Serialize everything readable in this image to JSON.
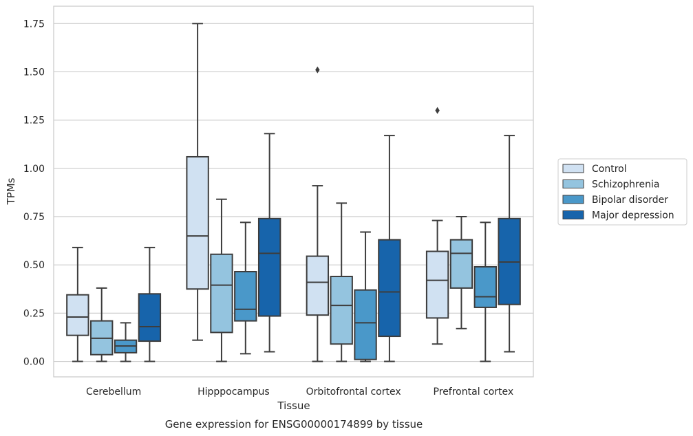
{
  "chart_data": {
    "type": "box",
    "title": "",
    "caption": "Gene expression for ENSG00000174899 by tissue",
    "xlabel": "Tissue",
    "ylabel": "TPMs",
    "ylim": [
      -0.08,
      1.84
    ],
    "yticks": [
      "0.00",
      "0.25",
      "0.50",
      "0.75",
      "1.00",
      "1.25",
      "1.50",
      "1.75"
    ],
    "grid": "horizontal",
    "legend_position": "right",
    "categories": [
      "Cerebellum",
      "Hipppocampus",
      "Orbitofrontal cortex",
      "Prefrontal cortex"
    ],
    "series": [
      {
        "name": "Control",
        "color": "#d0e1f2",
        "boxes": [
          {
            "whislo": 0.0,
            "q1": 0.135,
            "med": 0.23,
            "q3": 0.345,
            "whishi": 0.59,
            "fliers": []
          },
          {
            "whislo": 0.11,
            "q1": 0.375,
            "med": 0.65,
            "q3": 1.06,
            "whishi": 1.75,
            "fliers": []
          },
          {
            "whislo": 0.0,
            "q1": 0.24,
            "med": 0.41,
            "q3": 0.545,
            "whishi": 0.91,
            "fliers": [
              1.51
            ]
          },
          {
            "whislo": 0.09,
            "q1": 0.225,
            "med": 0.42,
            "q3": 0.57,
            "whishi": 0.73,
            "fliers": [
              1.3
            ]
          }
        ]
      },
      {
        "name": "Schizophrenia",
        "color": "#94c4df",
        "boxes": [
          {
            "whislo": 0.0,
            "q1": 0.035,
            "med": 0.12,
            "q3": 0.21,
            "whishi": 0.38,
            "fliers": []
          },
          {
            "whislo": 0.0,
            "q1": 0.15,
            "med": 0.395,
            "q3": 0.555,
            "whishi": 0.84,
            "fliers": []
          },
          {
            "whislo": 0.0,
            "q1": 0.09,
            "med": 0.29,
            "q3": 0.44,
            "whishi": 0.82,
            "fliers": []
          },
          {
            "whislo": 0.17,
            "q1": 0.38,
            "med": 0.56,
            "q3": 0.63,
            "whishi": 0.75,
            "fliers": []
          }
        ]
      },
      {
        "name": "Bipolar disorder",
        "color": "#4a98c9",
        "boxes": [
          {
            "whislo": 0.0,
            "q1": 0.045,
            "med": 0.08,
            "q3": 0.11,
            "whishi": 0.2,
            "fliers": []
          },
          {
            "whislo": 0.04,
            "q1": 0.21,
            "med": 0.27,
            "q3": 0.465,
            "whishi": 0.72,
            "fliers": []
          },
          {
            "whislo": 0.0,
            "q1": 0.01,
            "med": 0.2,
            "q3": 0.37,
            "whishi": 0.67,
            "fliers": []
          },
          {
            "whislo": 0.0,
            "q1": 0.28,
            "med": 0.335,
            "q3": 0.49,
            "whishi": 0.72,
            "fliers": []
          }
        ]
      },
      {
        "name": "Major depression",
        "color": "#1764ab",
        "boxes": [
          {
            "whislo": 0.0,
            "q1": 0.105,
            "med": 0.18,
            "q3": 0.35,
            "whishi": 0.59,
            "fliers": []
          },
          {
            "whislo": 0.05,
            "q1": 0.235,
            "med": 0.56,
            "q3": 0.74,
            "whishi": 1.18,
            "fliers": []
          },
          {
            "whislo": 0.0,
            "q1": 0.13,
            "med": 0.36,
            "q3": 0.63,
            "whishi": 1.17,
            "fliers": []
          },
          {
            "whislo": 0.05,
            "q1": 0.295,
            "med": 0.515,
            "q3": 0.74,
            "whishi": 1.17,
            "fliers": []
          }
        ]
      }
    ]
  }
}
